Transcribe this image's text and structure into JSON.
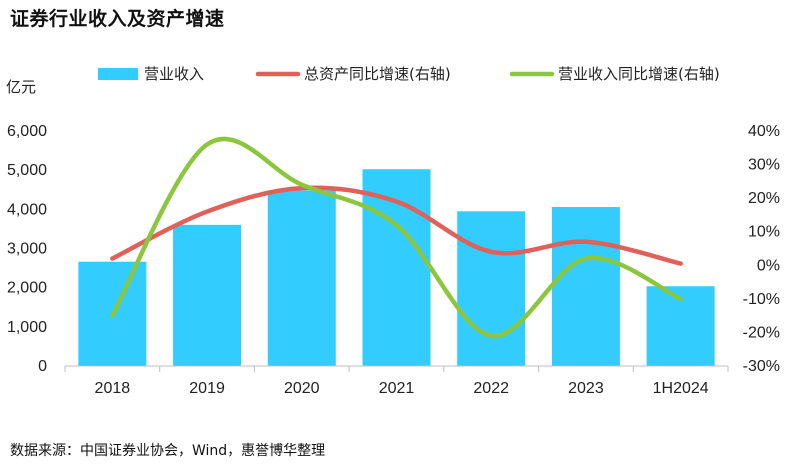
{
  "title": "证券行业收入及资产增速",
  "source": "数据来源：中国证券业协会，Wind，惠誉博华整理",
  "chart_data": {
    "type": "bar",
    "title": "证券行业收入及资产增速",
    "categories": [
      "2018",
      "2019",
      "2020",
      "2021",
      "2022",
      "2023",
      "1H2024"
    ],
    "left_axis": {
      "unit_label": "亿元",
      "range": [
        0,
        6000
      ],
      "ticks": [
        "0",
        "1,000",
        "2,000",
        "3,000",
        "4,000",
        "5,000",
        "6,000"
      ],
      "tick_values": [
        0,
        1000,
        2000,
        3000,
        4000,
        5000,
        6000
      ]
    },
    "right_axis": {
      "range": [
        -30,
        40
      ],
      "ticks": [
        "-30%",
        "-20%",
        "-10%",
        "0%",
        "10%",
        "20%",
        "30%",
        "40%"
      ],
      "tick_values": [
        -30,
        -20,
        -10,
        0,
        10,
        20,
        30,
        40
      ]
    },
    "series": [
      {
        "name": "营业收入",
        "type": "bar",
        "axis": "left",
        "color": "#33ccff",
        "values": [
          2663,
          3604,
          4485,
          5024,
          3950,
          4059,
          2036
        ]
      },
      {
        "name": "总资产同比增速(右轴)",
        "type": "line",
        "axis": "right",
        "color": "#e0605a",
        "values": [
          2,
          16,
          23,
          19,
          4,
          7,
          0.5
        ]
      },
      {
        "name": "营业收入同比增速(右轴)",
        "type": "line",
        "axis": "right",
        "color": "#8cc63f",
        "values": [
          -15,
          36,
          24,
          12,
          -21,
          2,
          -10
        ]
      }
    ],
    "grid": false,
    "legend_position": "top"
  }
}
